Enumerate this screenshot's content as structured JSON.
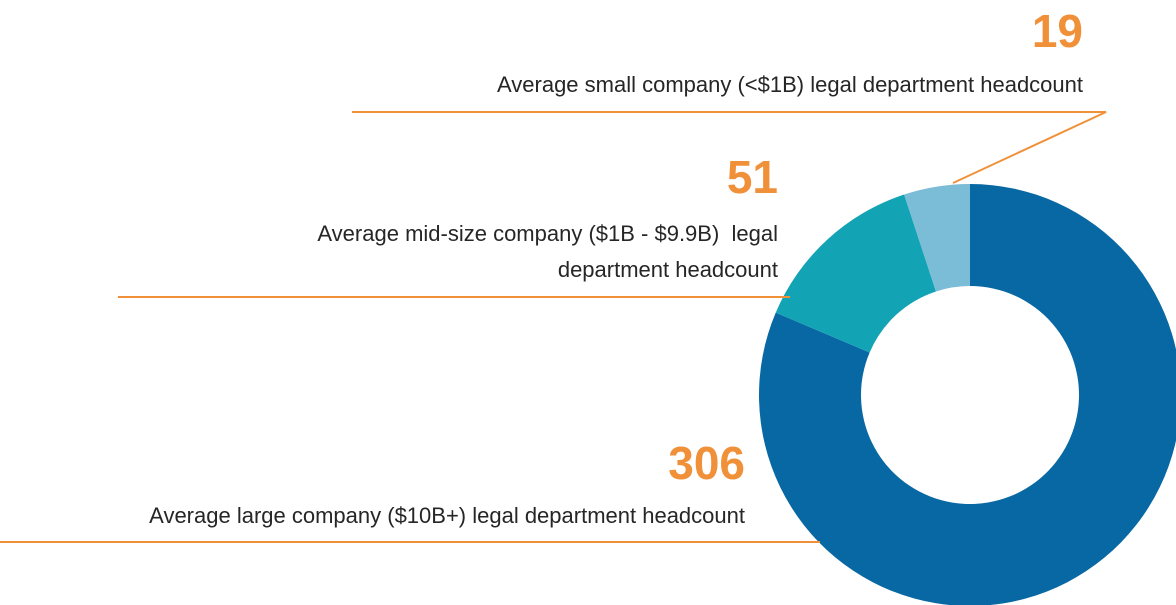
{
  "chart_data": {
    "type": "donut",
    "categories": [
      "Average large company ($10B+) legal department headcount",
      "Average mid-size company ($1B - $9.9B)  legal\ndepartment headcount",
      "Average small company (<$1B) legal department headcount"
    ],
    "values": [
      306,
      51,
      19
    ],
    "colors": [
      "#0868a3",
      "#12a3b5",
      "#7bbcd6"
    ],
    "label_color": "#f0913a"
  }
}
